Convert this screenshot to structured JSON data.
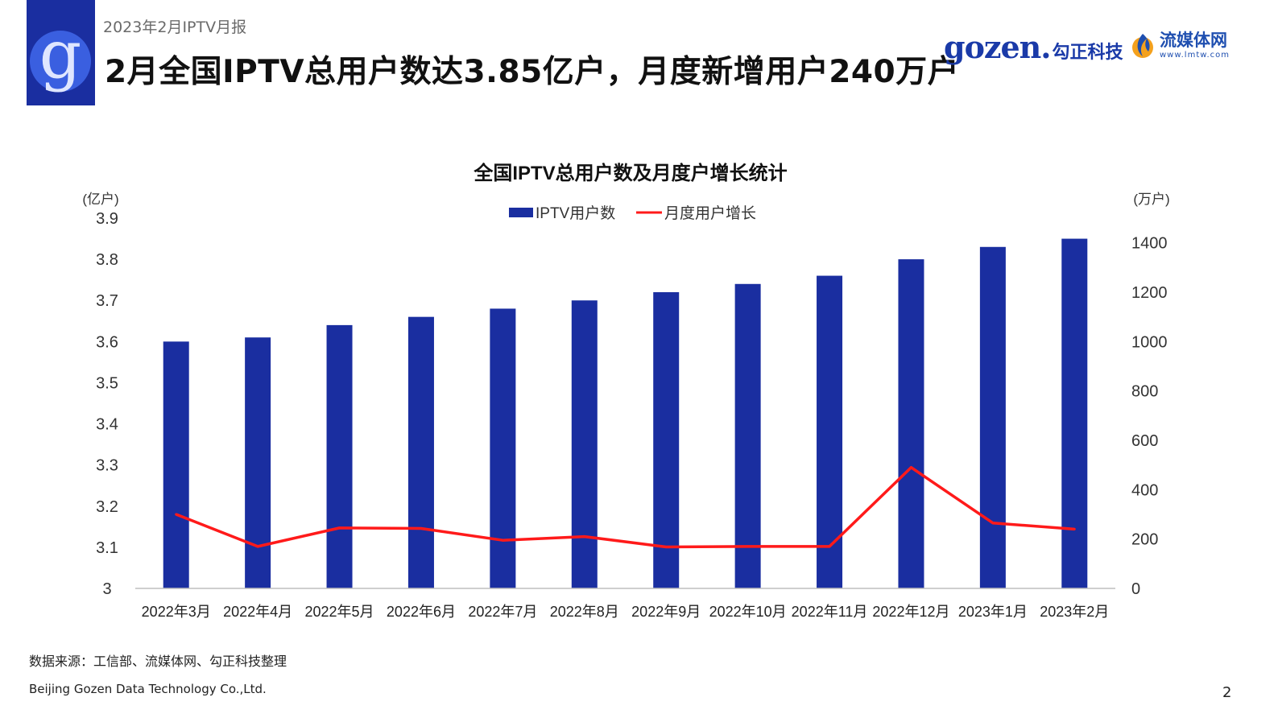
{
  "header": {
    "report_label": "2023年2月IPTV月报",
    "title": "2月全国IPTV总用户数达3.85亿户，月度新增用户240万户",
    "logo_icon": "gozen-g-logo-icon",
    "brand_gozen_word": "gozen.",
    "brand_gozen_cn": "勾正科技",
    "brand_lmtw_cn": "流媒体网",
    "brand_lmtw_url": "www.lmtw.com"
  },
  "colors": {
    "bar": "#1a2ea0",
    "line": "#ff1a1a",
    "axis": "#bfbfbf",
    "logo_block": "#1a2ea0"
  },
  "chart_data": {
    "type": "bar",
    "title": "全国IPTV总用户数及月度户增长统计",
    "categories": [
      "2022年3月",
      "2022年4月",
      "2022年5月",
      "2022年6月",
      "2022年7月",
      "2022年8月",
      "2022年9月",
      "2022年10月",
      "2022年11月",
      "2022年12月",
      "2023年1月",
      "2023年2月"
    ],
    "series": [
      {
        "name": "IPTV用户数",
        "type": "bar",
        "axis": "left",
        "values": [
          3.6,
          3.61,
          3.64,
          3.66,
          3.68,
          3.7,
          3.72,
          3.74,
          3.76,
          3.8,
          3.83,
          3.85
        ]
      },
      {
        "name": "月度用户增长",
        "type": "line",
        "axis": "right",
        "values": [
          300,
          170,
          245,
          243,
          195,
          210,
          168,
          170,
          170,
          490,
          265,
          240
        ]
      }
    ],
    "left_axis": {
      "unit": "(亿户)",
      "min": 3,
      "max": 3.9,
      "ticks": [
        "3",
        "3.1",
        "3.2",
        "3.3",
        "3.4",
        "3.5",
        "3.6",
        "3.7",
        "3.8",
        "3.9"
      ]
    },
    "right_axis": {
      "unit": "(万户)",
      "min": 0,
      "max": 1500,
      "ticks": [
        "0",
        "200",
        "400",
        "600",
        "800",
        "1000",
        "1200",
        "1400"
      ]
    },
    "legend": "top-center",
    "grid": false
  },
  "footer": {
    "source": "数据来源：工信部、流媒体网、勾正科技整理",
    "company": "Beijing Gozen Data Technology Co.,Ltd.",
    "page_number": "2"
  }
}
